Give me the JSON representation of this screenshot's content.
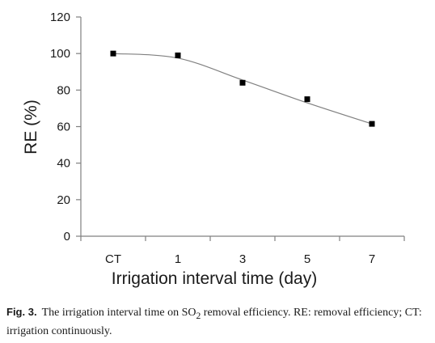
{
  "chart_data": {
    "type": "scatter",
    "categories": [
      "CT",
      "1",
      "3",
      "5",
      "7"
    ],
    "values": [
      100,
      99,
      84,
      75,
      61.5
    ],
    "trendline": [
      {
        "x": "CT",
        "y": 100
      },
      {
        "x": "1",
        "y": 97.5
      },
      {
        "x": "3",
        "y": 85.5
      },
      {
        "x": "5",
        "y": 73
      },
      {
        "x": "7",
        "y": 61.5
      }
    ],
    "xlabel": "Irrigation interval time (day)",
    "ylabel": "RE (%)",
    "ylim": [
      0,
      120
    ],
    "yticks": [
      0,
      20,
      40,
      60,
      80,
      100,
      120
    ],
    "grid": false,
    "legend": "none"
  },
  "caption": {
    "label": "Fig. 3.",
    "text_before_sub": "The irrigation interval time on SO",
    "subscript": "2",
    "text_after_sub": " removal efficiency. RE: removal efficiency; CT: irrigation continuously."
  }
}
